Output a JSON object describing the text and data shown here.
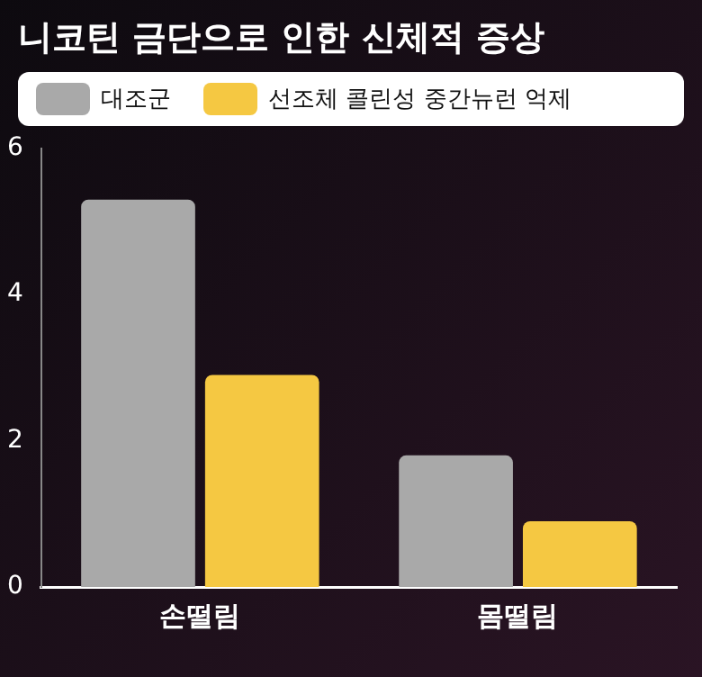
{
  "chart_data": {
    "type": "bar",
    "title": "니코틴 금단으로 인한 신체적 증상",
    "categories": [
      "손떨림",
      "몸떨림"
    ],
    "series": [
      {
        "name": "대조군",
        "color": "#a9a9a9",
        "values": [
          5.3,
          1.8
        ]
      },
      {
        "name": "선조체 콜린성 중간뉴런 억제",
        "color": "#f5c842",
        "values": [
          2.9,
          0.9
        ]
      }
    ],
    "ylim": [
      0,
      6
    ],
    "yticks": [
      0,
      2,
      4,
      6
    ],
    "grid": false,
    "legend": "top"
  }
}
